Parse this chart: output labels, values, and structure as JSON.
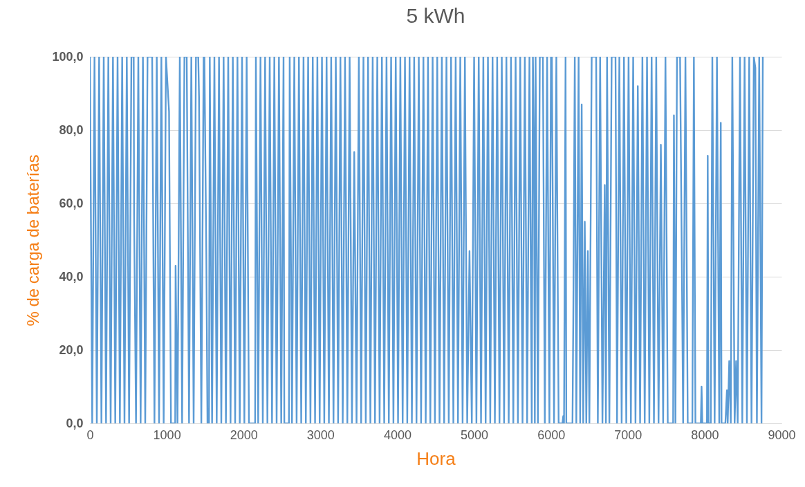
{
  "chart_data": {
    "type": "line",
    "title": "5 kWh",
    "xlabel": "Hora",
    "ylabel": "% de carga de baterías",
    "xlim": [
      0,
      9000
    ],
    "xticks": [
      0,
      1000,
      2000,
      3000,
      4000,
      5000,
      6000,
      7000,
      8000,
      9000
    ],
    "ylim": [
      0,
      100
    ],
    "yticks": [
      {
        "value": 0,
        "label": "0,0"
      },
      {
        "value": 20,
        "label": "20,0"
      },
      {
        "value": 40,
        "label": "40,0"
      },
      {
        "value": 60,
        "label": "60,0"
      },
      {
        "value": 80,
        "label": "80,0"
      },
      {
        "value": 100,
        "label": "100,0"
      }
    ],
    "grid": "y",
    "legend": false,
    "marker": "none",
    "line_style": "solid",
    "series": [
      {
        "color": "#5b9bd5",
        "x": [
          0,
          30,
          60,
          90,
          120,
          150,
          180,
          210,
          240,
          270,
          300,
          330,
          360,
          390,
          420,
          450,
          480,
          510,
          540,
          570,
          575,
          600,
          630,
          660,
          690,
          720,
          750,
          780,
          810,
          840,
          870,
          900,
          930,
          960,
          990,
          1030,
          1055,
          1080,
          1110,
          1115,
          1140,
          1170,
          1200,
          1230,
          1260,
          1290,
          1320,
          1350,
          1380,
          1410,
          1420,
          1450,
          1480,
          1490,
          1515,
          1530,
          1550,
          1560,
          1590,
          1620,
          1650,
          1680,
          1710,
          1740,
          1770,
          1800,
          1830,
          1860,
          1890,
          1920,
          1950,
          1980,
          2010,
          2040,
          2070,
          2150,
          2160,
          2190,
          2220,
          2250,
          2280,
          2310,
          2340,
          2370,
          2400,
          2430,
          2460,
          2490,
          2520,
          2530,
          2590,
          2600,
          2630,
          2660,
          2690,
          2720,
          2750,
          2780,
          2810,
          2840,
          2870,
          2900,
          2930,
          2960,
          2990,
          3020,
          3050,
          3080,
          3110,
          3140,
          3170,
          3200,
          3230,
          3260,
          3290,
          3320,
          3350,
          3380,
          3410,
          3440,
          3470,
          3500,
          3530,
          3560,
          3590,
          3620,
          3650,
          3680,
          3710,
          3740,
          3770,
          3800,
          3830,
          3860,
          3890,
          3920,
          3950,
          3980,
          4010,
          4040,
          4070,
          4100,
          4130,
          4160,
          4190,
          4220,
          4250,
          4280,
          4310,
          4340,
          4370,
          4400,
          4430,
          4460,
          4490,
          4520,
          4550,
          4580,
          4610,
          4640,
          4670,
          4700,
          4730,
          4760,
          4790,
          4820,
          4850,
          4880,
          4910,
          4940,
          4970,
          5000,
          5030,
          5060,
          5090,
          5120,
          5150,
          5180,
          5210,
          5240,
          5270,
          5300,
          5330,
          5360,
          5390,
          5420,
          5450,
          5480,
          5510,
          5540,
          5570,
          5600,
          5630,
          5660,
          5690,
          5720,
          5750,
          5765,
          5780,
          5790,
          5800,
          5830,
          5855,
          5895,
          5920,
          5950,
          5980,
          6000,
          6012,
          6040,
          6070,
          6100,
          6150,
          6160,
          6170,
          6190,
          6200,
          6280,
          6290,
          6310,
          6330,
          6360,
          6380,
          6400,
          6420,
          6440,
          6460,
          6480,
          6500,
          6530,
          6588,
          6610,
          6640,
          6670,
          6700,
          6715,
          6730,
          6760,
          6790,
          6840,
          6860,
          6890,
          6920,
          6950,
          6980,
          7010,
          7040,
          7070,
          7100,
          7130,
          7160,
          7190,
          7220,
          7250,
          7280,
          7310,
          7340,
          7370,
          7400,
          7430,
          7460,
          7490,
          7520,
          7590,
          7600,
          7620,
          7640,
          7680,
          7700,
          7720,
          7750,
          7780,
          7840,
          7860,
          7880,
          7950,
          7960,
          7970,
          8030,
          8040,
          8050,
          8080,
          8100,
          8130,
          8160,
          8190,
          8210,
          8220,
          8270,
          8290,
          8300,
          8320,
          8340,
          8360,
          8390,
          8410,
          8430,
          8460,
          8490,
          8520,
          8550,
          8580,
          8610,
          8640,
          8660,
          8680,
          8710,
          8740,
          8757
        ],
        "values": [
          100,
          0,
          100,
          0,
          100,
          0,
          100,
          0,
          100,
          0,
          100,
          0,
          100,
          0,
          100,
          0,
          100,
          0,
          100,
          100,
          57,
          0,
          100,
          0,
          100,
          0,
          100,
          100,
          100,
          0,
          100,
          0,
          100,
          0,
          100,
          85,
          0,
          0,
          0,
          43,
          0,
          100,
          0,
          100,
          100,
          0,
          100,
          0,
          100,
          100,
          89,
          0,
          100,
          100,
          46,
          0,
          0,
          100,
          0,
          100,
          0,
          100,
          0,
          100,
          0,
          100,
          0,
          100,
          0,
          100,
          0,
          100,
          0,
          100,
          0,
          0,
          100,
          0,
          100,
          0,
          100,
          0,
          100,
          0,
          100,
          0,
          100,
          0,
          100,
          0,
          0,
          100,
          0,
          100,
          0,
          100,
          0,
          100,
          0,
          100,
          0,
          100,
          0,
          100,
          0,
          100,
          0,
          100,
          0,
          100,
          0,
          100,
          0,
          100,
          0,
          100,
          0,
          100,
          0,
          74,
          0,
          100,
          0,
          100,
          0,
          100,
          0,
          100,
          0,
          100,
          0,
          100,
          0,
          100,
          0,
          100,
          0,
          100,
          0,
          100,
          0,
          100,
          0,
          100,
          0,
          100,
          0,
          100,
          0,
          100,
          0,
          100,
          0,
          100,
          0,
          100,
          0,
          100,
          0,
          100,
          0,
          100,
          0,
          100,
          0,
          100,
          0,
          100,
          0,
          47,
          0,
          100,
          0,
          100,
          0,
          100,
          0,
          100,
          0,
          100,
          0,
          100,
          0,
          100,
          0,
          100,
          0,
          100,
          0,
          100,
          0,
          100,
          0,
          100,
          0,
          100,
          0,
          100,
          74,
          0,
          100,
          0,
          100,
          100,
          0,
          100,
          0,
          100,
          100,
          0,
          100,
          0,
          0,
          2,
          0,
          100,
          0,
          0,
          27,
          100,
          0,
          100,
          0,
          87,
          0,
          55,
          0,
          47,
          0,
          100,
          100,
          0,
          100,
          0,
          65,
          0,
          100,
          0,
          100,
          100,
          0,
          100,
          0,
          100,
          0,
          100,
          0,
          100,
          0,
          92,
          0,
          100,
          0,
          100,
          0,
          100,
          0,
          100,
          0,
          76,
          0,
          100,
          0,
          0,
          84,
          0,
          100,
          100,
          52,
          0,
          100,
          0,
          0,
          100,
          0,
          0,
          10,
          0,
          0,
          73,
          0,
          0,
          100,
          0,
          100,
          0,
          82,
          0,
          0,
          9,
          0,
          17,
          0,
          100,
          0,
          17,
          0,
          100,
          0,
          100,
          0,
          100,
          0,
          100,
          97,
          0,
          100,
          0,
          100
        ]
      }
    ]
  }
}
